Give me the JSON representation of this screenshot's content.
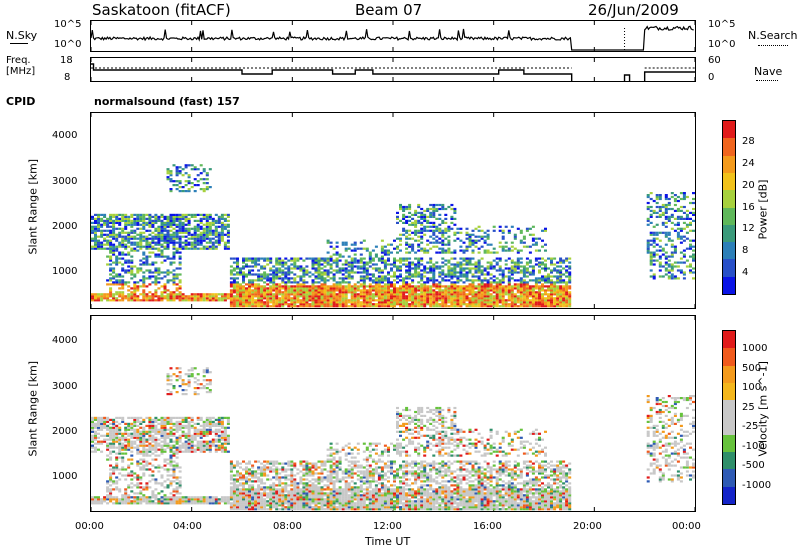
{
  "header": {
    "station": "Saskatoon (fitACF)",
    "beam": "Beam 07",
    "date": "26/Jun/2009"
  },
  "noise_panel": {
    "left_label": "N.Sky",
    "left_ticks": [
      "10^5",
      "10^0"
    ],
    "right_ticks": [
      "10^5",
      "10^0"
    ],
    "right_label": "N.Search"
  },
  "freq_panel": {
    "left_label_1": "Freq.",
    "left_label_2": "[MHz]",
    "left_ticks": [
      "18",
      "8"
    ],
    "right_ticks": [
      "60",
      "0"
    ],
    "right_label": "Nave"
  },
  "cpid": {
    "label": "CPID",
    "value": "normalsound (fast) 157"
  },
  "power_panel": {
    "ylabel": "Slant Range [km]",
    "yticks": [
      "4000",
      "3000",
      "2000",
      "1000"
    ],
    "colorbar_label": "Power [dB]",
    "colorbar_ticks": [
      "28",
      "24",
      "20",
      "16",
      "12",
      "8",
      "4"
    ],
    "colors": [
      "#0a14e6",
      "#2850c8",
      "#2c7fb8",
      "#3a9a7a",
      "#5fb85a",
      "#a7d13d",
      "#f1c21b",
      "#f39a1c",
      "#f0651e",
      "#e11b1b"
    ]
  },
  "velocity_panel": {
    "ylabel": "Slant Range [km]",
    "yticks": [
      "4000",
      "3000",
      "2000",
      "1000"
    ],
    "colorbar_label": "Velocity [m s^-1]",
    "colorbar_ticks": [
      "1000",
      "500",
      "100",
      "25",
      "-25",
      "-100",
      "-500",
      "-1000"
    ],
    "colors": [
      "#1424c8",
      "#2e5ab4",
      "#2f8f6a",
      "#66c23c",
      "#c8c8c8",
      "#c8c8c8",
      "#f3b61c",
      "#f39a1c",
      "#f05a1c",
      "#e11b1b"
    ]
  },
  "xaxis": {
    "ticks": [
      "00:00",
      "04:00",
      "08:00",
      "12:00",
      "16:00",
      "20:00",
      "00:00"
    ],
    "label": "Time UT"
  },
  "chart_data": [
    {
      "type": "line",
      "title": "N.Sky / N.Search",
      "x_range_hours": [
        0,
        24
      ],
      "notes": "noise level, log scale 10^0 to 10^5; data gap ~19.2-21.0 UT and ~21.2-22.0 UT"
    },
    {
      "type": "line",
      "title": "Freq. [MHz] / Nave",
      "x_range_hours": [
        0,
        24
      ],
      "ylim": [
        8,
        18
      ],
      "ylim_right": [
        0,
        60
      ]
    },
    {
      "type": "heatmap",
      "quantity": "Power",
      "units": "dB",
      "x_range_hours": [
        0,
        24
      ],
      "ylim": [
        180,
        4600
      ],
      "ylabel": "Slant Range [km]",
      "colorscale": [
        4,
        28
      ],
      "data_coverage_hours": [
        [
          0,
          19.1
        ],
        [
          21.3,
          24
        ]
      ]
    },
    {
      "type": "heatmap",
      "quantity": "Velocity",
      "units": "m s^-1",
      "x_range_hours": [
        0,
        24
      ],
      "ylim": [
        180,
        4600
      ],
      "ylabel": "Slant Range [km]",
      "colorscale": [
        -1000,
        1000
      ],
      "data_coverage_hours": [
        [
          0,
          19.1
        ],
        [
          21.3,
          24
        ]
      ]
    }
  ]
}
